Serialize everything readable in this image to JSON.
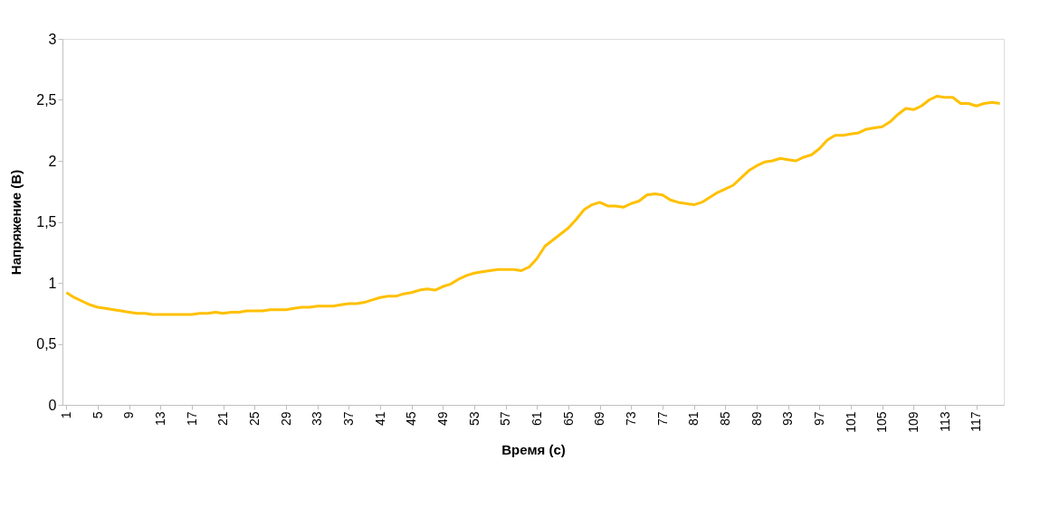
{
  "chart_data": {
    "type": "line",
    "xlabel": "Время (с)",
    "ylabel": "Напряжение (В)",
    "categories": [
      "1",
      null,
      null,
      null,
      "5",
      null,
      null,
      null,
      "9",
      null,
      null,
      null,
      "13",
      null,
      null,
      null,
      "17",
      null,
      null,
      null,
      "21",
      null,
      null,
      null,
      "25",
      null,
      null,
      null,
      "29",
      null,
      null,
      null,
      "33",
      null,
      null,
      null,
      "37",
      null,
      null,
      null,
      "41",
      null,
      null,
      null,
      "45",
      null,
      null,
      null,
      "49",
      null,
      null,
      null,
      "53",
      null,
      null,
      null,
      "57",
      null,
      null,
      null,
      "61",
      null,
      null,
      null,
      "65",
      null,
      null,
      null,
      "69",
      null,
      null,
      null,
      "73",
      null,
      null,
      null,
      "77",
      null,
      null,
      null,
      "81",
      null,
      null,
      null,
      "85",
      null,
      null,
      null,
      "89",
      null,
      null,
      null,
      "93",
      null,
      null,
      null,
      "97",
      null,
      null,
      null,
      "101",
      null,
      null,
      null,
      "105",
      null,
      null,
      null,
      "109",
      null,
      null,
      null,
      "113",
      null,
      null,
      null,
      "117",
      null,
      null,
      null
    ],
    "series": [
      {
        "color": "#ffc000",
        "values": [
          0.92,
          0.88,
          0.85,
          0.82,
          0.8,
          0.79,
          0.78,
          0.77,
          0.76,
          0.75,
          0.75,
          0.74,
          0.74,
          0.74,
          0.74,
          0.74,
          0.74,
          0.75,
          0.75,
          0.76,
          0.75,
          0.76,
          0.76,
          0.77,
          0.77,
          0.77,
          0.78,
          0.78,
          0.78,
          0.79,
          0.8,
          0.8,
          0.81,
          0.81,
          0.81,
          0.82,
          0.83,
          0.83,
          0.84,
          0.86,
          0.88,
          0.89,
          0.89,
          0.91,
          0.92,
          0.94,
          0.95,
          0.94,
          0.97,
          0.99,
          1.03,
          1.06,
          1.08,
          1.09,
          1.1,
          1.11,
          1.11,
          1.11,
          1.1,
          1.13,
          1.2,
          1.3,
          1.35,
          1.4,
          1.45,
          1.52,
          1.6,
          1.64,
          1.66,
          1.63,
          1.63,
          1.62,
          1.65,
          1.67,
          1.72,
          1.73,
          1.72,
          1.68,
          1.66,
          1.65,
          1.64,
          1.66,
          1.7,
          1.74,
          1.77,
          1.8,
          1.86,
          1.92,
          1.96,
          1.99,
          2.0,
          2.02,
          2.01,
          2.0,
          2.03,
          2.05,
          2.1,
          2.17,
          2.21,
          2.21,
          2.22,
          2.23,
          2.26,
          2.27,
          2.28,
          2.32,
          2.38,
          2.43,
          2.42,
          2.45,
          2.5,
          2.53,
          2.52,
          2.52,
          2.47,
          2.47,
          2.45,
          2.47,
          2.48,
          2.47
        ]
      }
    ],
    "ylim": [
      0,
      3
    ],
    "yticks": [
      0,
      {
        "value": 0.5,
        "label": "0,5"
      },
      1,
      {
        "value": 1.5,
        "label": "1,5"
      },
      2,
      {
        "value": 2.5,
        "label": "2,5"
      },
      3
    ],
    "grid": false,
    "marker": "none",
    "line_style": "solid"
  }
}
